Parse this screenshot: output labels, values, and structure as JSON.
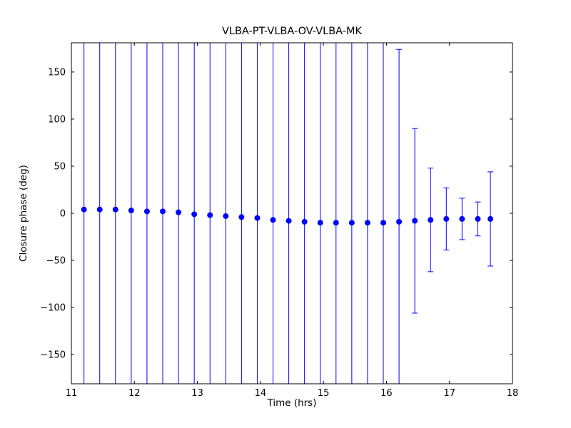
{
  "chart_data": {
    "type": "scatter",
    "subtype": "errorbar",
    "title": "VLBA-PT-VLBA-OV-VLBA-MK",
    "xlabel": "Time (hrs)",
    "ylabel": "Closure phase (deg)",
    "xlim": [
      11,
      18
    ],
    "ylim": [
      -181,
      181
    ],
    "xticks": [
      11,
      12,
      13,
      14,
      15,
      16,
      17,
      18
    ],
    "yticks": [
      -150,
      -100,
      -50,
      0,
      50,
      100,
      150
    ],
    "grid": false,
    "legend": "none",
    "marker_color": "#0000ff",
    "errorbar_color": "#0000ff",
    "frame_color": "#000000",
    "x": [
      11.2,
      11.45,
      11.7,
      11.95,
      12.2,
      12.45,
      12.7,
      12.95,
      13.2,
      13.45,
      13.7,
      13.95,
      14.2,
      14.45,
      14.7,
      14.95,
      15.2,
      15.45,
      15.7,
      15.95,
      16.2,
      16.45,
      16.7,
      16.95,
      17.2,
      17.45,
      17.65
    ],
    "y": [
      4,
      4,
      4,
      3,
      2,
      2,
      1,
      -1,
      -2,
      -3,
      -4,
      -5,
      -7,
      -8,
      -9,
      -10,
      -10,
      -10,
      -10,
      -10,
      -9,
      -8,
      -7,
      -6,
      -6,
      -6,
      -6
    ],
    "yerr": [
      500,
      500,
      500,
      500,
      500,
      500,
      500,
      500,
      500,
      500,
      500,
      500,
      500,
      500,
      500,
      500,
      500,
      500,
      500,
      500,
      183,
      98,
      55,
      33,
      22,
      18,
      50
    ]
  }
}
